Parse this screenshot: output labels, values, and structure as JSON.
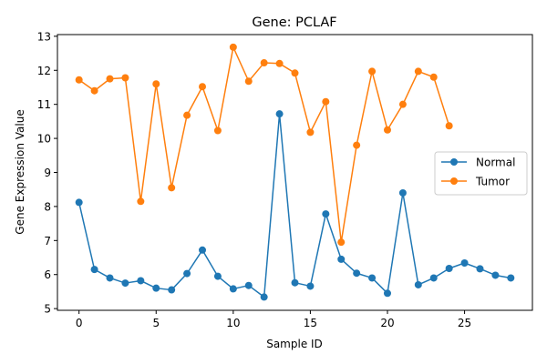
{
  "chart_data": {
    "type": "line",
    "title": "Gene: PCLAF",
    "xlabel": "Sample ID",
    "ylabel": "Gene Expression Value",
    "xlim": [
      -1.4,
      29.4
    ],
    "ylim": [
      4.95,
      13.05
    ],
    "x_ticks": [
      0,
      5,
      10,
      15,
      20,
      25
    ],
    "y_ticks": [
      5,
      6,
      7,
      8,
      9,
      10,
      11,
      12,
      13
    ],
    "grid": false,
    "legend_position": "center-right",
    "series": [
      {
        "name": "Normal",
        "color": "#1f77b4",
        "marker": "circle",
        "x": [
          0,
          1,
          2,
          3,
          4,
          5,
          6,
          7,
          8,
          9,
          10,
          11,
          12,
          13,
          14,
          15,
          16,
          17,
          18,
          19,
          20,
          21,
          22,
          23,
          24,
          25,
          26,
          27,
          28
        ],
        "values": [
          8.12,
          6.15,
          5.9,
          5.75,
          5.82,
          5.6,
          5.55,
          6.03,
          6.72,
          5.95,
          5.58,
          5.68,
          5.34,
          10.72,
          5.76,
          5.66,
          7.78,
          6.45,
          6.04,
          5.9,
          5.45,
          8.4,
          5.7,
          5.9,
          6.18,
          6.34,
          6.17,
          5.98,
          5.9
        ]
      },
      {
        "name": "Tumor",
        "color": "#ff7f0e",
        "marker": "circle",
        "x": [
          0,
          1,
          2,
          3,
          4,
          5,
          6,
          7,
          8,
          9,
          10,
          11,
          12,
          13,
          14,
          15,
          16,
          17,
          18,
          19,
          20,
          21,
          22,
          23,
          24
        ],
        "values": [
          11.72,
          11.4,
          11.75,
          11.78,
          8.15,
          11.6,
          8.55,
          10.68,
          11.52,
          10.23,
          12.68,
          11.68,
          12.22,
          12.2,
          11.92,
          10.18,
          11.08,
          6.95,
          9.8,
          11.97,
          10.25,
          11.0,
          11.97,
          11.8,
          10.37
        ]
      }
    ]
  }
}
